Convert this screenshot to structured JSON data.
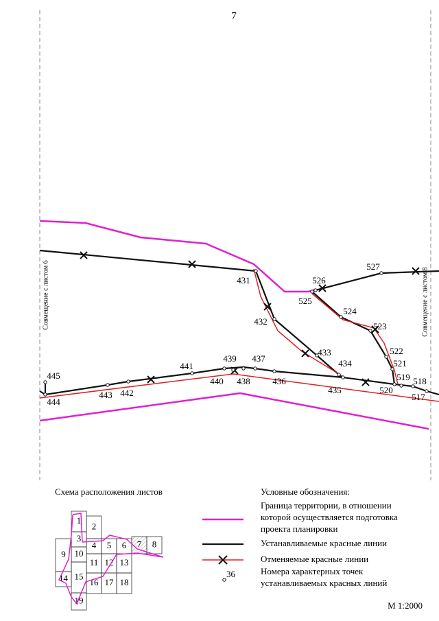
{
  "page_number": "7",
  "left_label": "Совмещение с листом 6",
  "right_label": "Совмещение с листом 8",
  "points": [
    "431",
    "432",
    "433",
    "434",
    "435",
    "436",
    "437",
    "438",
    "439",
    "440",
    "441",
    "442",
    "443",
    "444",
    "445",
    "517",
    "518",
    "519",
    "520",
    "521",
    "522",
    "523",
    "524",
    "525",
    "526",
    "527"
  ],
  "scheme": {
    "title": "Схема расположения листов",
    "sheets": [
      "1",
      "2",
      "3",
      "4",
      "5",
      "6",
      "7",
      "8",
      "9",
      "10",
      "11",
      "12",
      "13",
      "14",
      "15",
      "16",
      "17",
      "18",
      "19"
    ]
  },
  "legend": {
    "title": "Условные обозначения:",
    "items": [
      [
        "Граница территории, в отношении",
        "которой осуществляется подготовка",
        "проекта планировки"
      ],
      [
        "Устанавливаемые красные линии"
      ],
      [
        "Отменяемые красные линии"
      ],
      [
        "Номера характерных точек",
        "устанавливаемых красных линий"
      ]
    ],
    "sample_point": "36"
  },
  "scale": "М 1:2000"
}
